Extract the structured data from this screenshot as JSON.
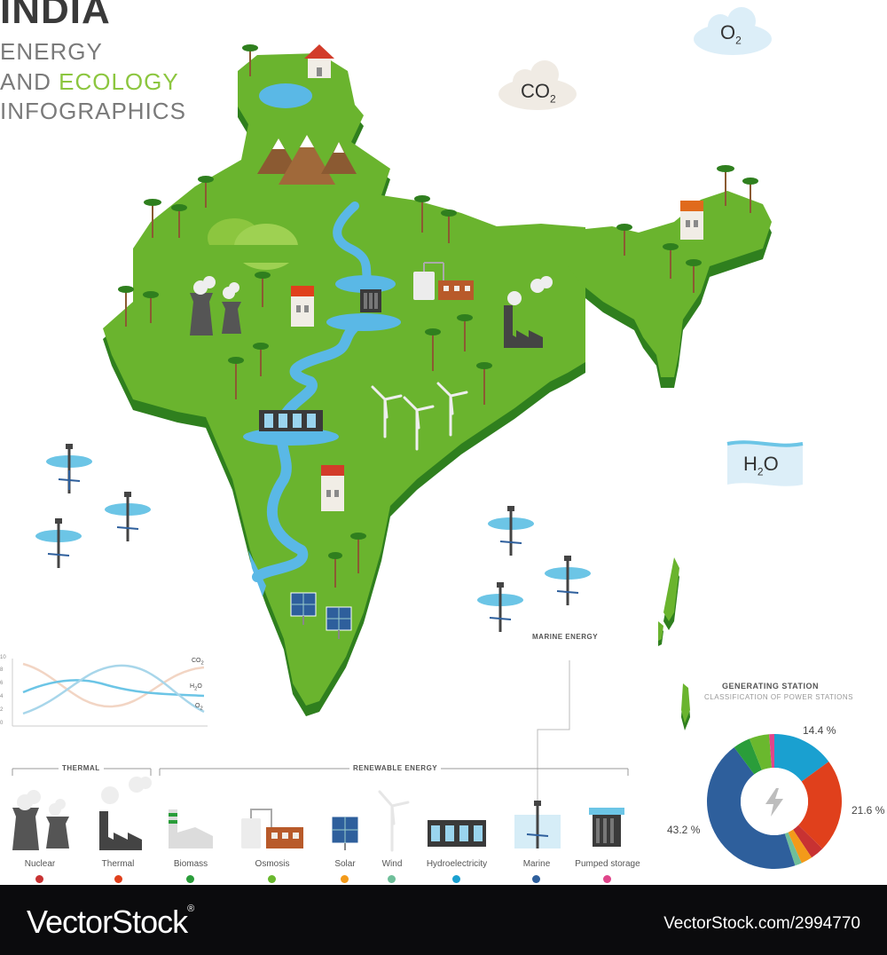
{
  "title": {
    "country": "INDIA",
    "line1": "ENERGY",
    "line2_prefix": "AND ",
    "line2_highlight": "ECOLOGY",
    "line3": "INFOGRAPHICS"
  },
  "clouds": {
    "o2": "O",
    "o2_sub": "2",
    "co2": "CO",
    "co2_sub": "2",
    "h2o_pre": "H",
    "h2o_sub": "2",
    "h2o_post": "O"
  },
  "marine_label": "MARINE ENERGY",
  "line_chart": {
    "y_ticks": [
      "10",
      "8",
      "6",
      "4",
      "2",
      "0"
    ],
    "series": [
      {
        "name": "CO2",
        "name_base": "CO",
        "name_sub": "2",
        "color": "#f2d5c4"
      },
      {
        "name": "H2O",
        "name_base": "H",
        "name_sub": "2",
        "name_post": "O",
        "color": "#6cc5e6"
      },
      {
        "name": "O2",
        "name_base": "O",
        "name_sub": "2",
        "color": "#a8d6ea"
      }
    ]
  },
  "legend": {
    "thermal_group": "THERMAL",
    "renewable_group": "RENEWABLE ENERGY",
    "items": [
      {
        "label": "Nuclear",
        "color": "#c83232",
        "icon": "nuclear-plant-icon"
      },
      {
        "label": "Thermal",
        "color": "#e0401c",
        "icon": "thermal-plant-icon"
      },
      {
        "label": "Biomass",
        "color": "#2a9d3a",
        "icon": "biomass-plant-icon"
      },
      {
        "label": "Osmosis",
        "color": "#6ab82e",
        "icon": "osmosis-plant-icon"
      },
      {
        "label": "Solar",
        "color": "#f39a1a",
        "icon": "solar-panel-icon"
      },
      {
        "label": "Wind",
        "color": "#6fbf9a",
        "icon": "wind-turbine-icon"
      },
      {
        "label": "Hydroelectricity",
        "color": "#1aa0d0",
        "icon": "hydro-dam-icon"
      },
      {
        "label": "Marine",
        "color": "#2e5f9c",
        "icon": "marine-turbine-icon"
      },
      {
        "label": "Pumped storage",
        "color": "#e0458a",
        "icon": "pumped-storage-icon"
      }
    ]
  },
  "generating_station": {
    "title": "GENERATING STATION",
    "subtitle": "CLASSIFICATION OF POWER STATIONS",
    "center_icon": "lightning-icon"
  },
  "chart_data": {
    "type": "pie",
    "title": "GENERATING STATION",
    "subtitle": "CLASSIFICATION OF POWER STATIONS",
    "slices": [
      {
        "label": "Hydroelectricity",
        "value": 14.4,
        "color": "#1aa0d0",
        "shown_label": "14.4 %"
      },
      {
        "label": "Thermal",
        "value": 21.6,
        "color": "#e0401c",
        "shown_label": "21.6 %"
      },
      {
        "label": "Nuclear",
        "value": 3.2,
        "color": "#c83232",
        "shown_label": ""
      },
      {
        "label": "Solar",
        "value": 2.6,
        "color": "#f39a1a",
        "shown_label": ""
      },
      {
        "label": "Wind",
        "value": 1.6,
        "color": "#6fbf9a",
        "shown_label": ""
      },
      {
        "label": "Marine",
        "value": 43.2,
        "color": "#2e5f9c",
        "shown_label": "43.2 %"
      },
      {
        "label": "Biomass",
        "value": 4.0,
        "color": "#2a9d3a",
        "shown_label": ""
      },
      {
        "label": "Osmosis",
        "value": 4.6,
        "color": "#6ab82e",
        "shown_label": ""
      },
      {
        "label": "Pumped storage",
        "value": 1.2,
        "color": "#e0458a",
        "shown_label": ""
      }
    ],
    "legend": "none"
  },
  "footer": {
    "logo_text": "VectorStock",
    "logo_reg": "®",
    "image_id": "VectorStock.com/2994770"
  }
}
